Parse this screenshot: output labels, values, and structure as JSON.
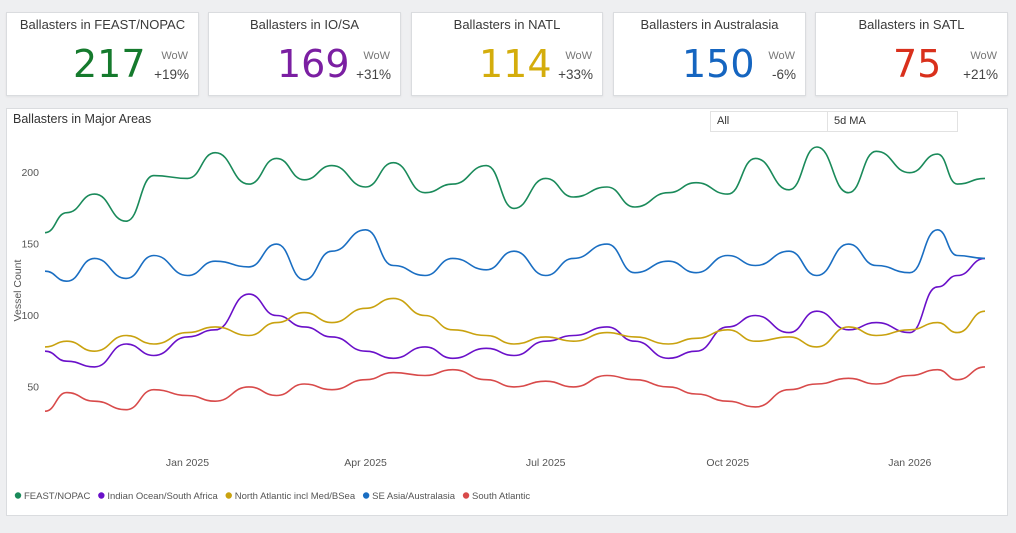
{
  "cards": [
    {
      "title": "Ballasters in FEAST/NOPAC",
      "value": "217",
      "wow_label": "WoW",
      "wow": "+19%",
      "color": "#157a2d"
    },
    {
      "title": "Ballasters in IO/SA",
      "value": "169",
      "wow_label": "WoW",
      "wow": "+31%",
      "color": "#7b1fa2"
    },
    {
      "title": "Ballasters in NATL",
      "value": "114",
      "wow_label": "WoW",
      "wow": "+33%",
      "color": "#d4ad0c"
    },
    {
      "title": "Ballasters in Australasia",
      "value": "150",
      "wow_label": "WoW",
      "wow": "-6%",
      "color": "#1565c0"
    },
    {
      "title": "Ballasters in SATL",
      "value": "75",
      "wow_label": "WoW",
      "wow": "+21%",
      "color": "#d9301c"
    }
  ],
  "panel": {
    "title": "Ballasters in Major Areas",
    "slicer_all": "All",
    "slicer_ma": "5d MA"
  },
  "chart_data": {
    "type": "line",
    "title": "Ballasters in Major Areas",
    "xlabel": "",
    "ylabel": "Vessel Count",
    "ylim": [
      10,
      225
    ],
    "yticks": [
      50,
      100,
      150,
      200
    ],
    "x_range": [
      "2024-10-21",
      "2026-02-08"
    ],
    "xticks": [
      {
        "date": "2025-01-01",
        "label": "Jan 2025"
      },
      {
        "date": "2025-04-01",
        "label": "Apr 2025"
      },
      {
        "date": "2025-07-01",
        "label": "Jul 2025"
      },
      {
        "date": "2025-10-01",
        "label": "Oct 2025"
      },
      {
        "date": "2026-01-01",
        "label": "Jan 2026"
      }
    ],
    "series": [
      {
        "name": "FEAST/NOPAC",
        "color": "#1a8a5a",
        "points": [
          [
            "2024-10-21",
            158
          ],
          [
            "2024-11-01",
            172
          ],
          [
            "2024-11-15",
            185
          ],
          [
            "2024-12-01",
            166
          ],
          [
            "2024-12-15",
            198
          ],
          [
            "2025-01-01",
            196
          ],
          [
            "2025-01-15",
            214
          ],
          [
            "2025-02-01",
            192
          ],
          [
            "2025-02-15",
            210
          ],
          [
            "2025-03-01",
            195
          ],
          [
            "2025-03-15",
            205
          ],
          [
            "2025-04-01",
            190
          ],
          [
            "2025-04-15",
            207
          ],
          [
            "2025-05-01",
            186
          ],
          [
            "2025-05-15",
            192
          ],
          [
            "2025-06-01",
            205
          ],
          [
            "2025-06-15",
            175
          ],
          [
            "2025-07-01",
            196
          ],
          [
            "2025-07-15",
            183
          ],
          [
            "2025-08-01",
            190
          ],
          [
            "2025-08-15",
            176
          ],
          [
            "2025-09-01",
            186
          ],
          [
            "2025-09-15",
            193
          ],
          [
            "2025-10-01",
            185
          ],
          [
            "2025-10-15",
            210
          ],
          [
            "2025-11-01",
            188
          ],
          [
            "2025-11-15",
            218
          ],
          [
            "2025-12-01",
            186
          ],
          [
            "2025-12-15",
            215
          ],
          [
            "2026-01-01",
            200
          ],
          [
            "2026-01-15",
            213
          ],
          [
            "2026-01-25",
            192
          ],
          [
            "2026-02-08",
            196
          ]
        ]
      },
      {
        "name": "Indian Ocean/South Africa",
        "color": "#6a10c9",
        "points": [
          [
            "2024-10-21",
            75
          ],
          [
            "2024-11-01",
            68
          ],
          [
            "2024-11-15",
            64
          ],
          [
            "2024-12-01",
            80
          ],
          [
            "2024-12-15",
            72
          ],
          [
            "2025-01-01",
            85
          ],
          [
            "2025-01-15",
            90
          ],
          [
            "2025-02-01",
            115
          ],
          [
            "2025-02-15",
            100
          ],
          [
            "2025-03-01",
            92
          ],
          [
            "2025-03-15",
            85
          ],
          [
            "2025-04-01",
            75
          ],
          [
            "2025-04-15",
            70
          ],
          [
            "2025-05-01",
            78
          ],
          [
            "2025-05-15",
            70
          ],
          [
            "2025-06-01",
            77
          ],
          [
            "2025-06-15",
            72
          ],
          [
            "2025-07-01",
            82
          ],
          [
            "2025-07-15",
            86
          ],
          [
            "2025-08-01",
            92
          ],
          [
            "2025-08-15",
            82
          ],
          [
            "2025-09-01",
            70
          ],
          [
            "2025-09-15",
            75
          ],
          [
            "2025-10-01",
            92
          ],
          [
            "2025-10-15",
            100
          ],
          [
            "2025-11-01",
            88
          ],
          [
            "2025-11-15",
            103
          ],
          [
            "2025-12-01",
            90
          ],
          [
            "2025-12-15",
            95
          ],
          [
            "2026-01-01",
            88
          ],
          [
            "2026-01-15",
            120
          ],
          [
            "2026-01-25",
            128
          ],
          [
            "2026-02-08",
            140
          ]
        ]
      },
      {
        "name": "North Atlantic incl Med/BSea",
        "color": "#c9a20f",
        "points": [
          [
            "2024-10-21",
            78
          ],
          [
            "2024-11-01",
            82
          ],
          [
            "2024-11-15",
            75
          ],
          [
            "2024-12-01",
            86
          ],
          [
            "2024-12-15",
            80
          ],
          [
            "2025-01-01",
            88
          ],
          [
            "2025-01-15",
            92
          ],
          [
            "2025-02-01",
            86
          ],
          [
            "2025-02-15",
            95
          ],
          [
            "2025-03-01",
            102
          ],
          [
            "2025-03-15",
            95
          ],
          [
            "2025-04-01",
            105
          ],
          [
            "2025-04-15",
            112
          ],
          [
            "2025-05-01",
            100
          ],
          [
            "2025-05-15",
            90
          ],
          [
            "2025-06-01",
            86
          ],
          [
            "2025-06-15",
            80
          ],
          [
            "2025-07-01",
            85
          ],
          [
            "2025-07-15",
            82
          ],
          [
            "2025-08-01",
            88
          ],
          [
            "2025-08-15",
            85
          ],
          [
            "2025-09-01",
            80
          ],
          [
            "2025-09-15",
            84
          ],
          [
            "2025-10-01",
            90
          ],
          [
            "2025-10-15",
            82
          ],
          [
            "2025-11-01",
            85
          ],
          [
            "2025-11-15",
            78
          ],
          [
            "2025-12-01",
            92
          ],
          [
            "2025-12-15",
            86
          ],
          [
            "2026-01-01",
            90
          ],
          [
            "2026-01-15",
            95
          ],
          [
            "2026-01-25",
            88
          ],
          [
            "2026-02-08",
            103
          ]
        ]
      },
      {
        "name": "SE Asia/Australasia",
        "color": "#1a6ec2",
        "points": [
          [
            "2024-10-21",
            131
          ],
          [
            "2024-11-01",
            124
          ],
          [
            "2024-11-15",
            140
          ],
          [
            "2024-12-01",
            126
          ],
          [
            "2024-12-15",
            142
          ],
          [
            "2025-01-01",
            128
          ],
          [
            "2025-01-15",
            138
          ],
          [
            "2025-02-01",
            134
          ],
          [
            "2025-02-15",
            150
          ],
          [
            "2025-03-01",
            125
          ],
          [
            "2025-03-15",
            145
          ],
          [
            "2025-04-01",
            160
          ],
          [
            "2025-04-15",
            135
          ],
          [
            "2025-05-01",
            128
          ],
          [
            "2025-05-15",
            140
          ],
          [
            "2025-06-01",
            132
          ],
          [
            "2025-06-15",
            145
          ],
          [
            "2025-07-01",
            128
          ],
          [
            "2025-07-15",
            140
          ],
          [
            "2025-08-01",
            150
          ],
          [
            "2025-08-15",
            130
          ],
          [
            "2025-09-01",
            138
          ],
          [
            "2025-09-15",
            130
          ],
          [
            "2025-10-01",
            142
          ],
          [
            "2025-10-15",
            135
          ],
          [
            "2025-11-01",
            145
          ],
          [
            "2025-11-15",
            128
          ],
          [
            "2025-12-01",
            150
          ],
          [
            "2025-12-15",
            135
          ],
          [
            "2026-01-01",
            130
          ],
          [
            "2026-01-15",
            160
          ],
          [
            "2026-01-25",
            142
          ],
          [
            "2026-02-08",
            140
          ]
        ]
      },
      {
        "name": "South Atlantic",
        "color": "#d84a4a",
        "points": [
          [
            "2024-10-21",
            33
          ],
          [
            "2024-11-01",
            46
          ],
          [
            "2024-11-15",
            40
          ],
          [
            "2024-12-01",
            34
          ],
          [
            "2024-12-15",
            48
          ],
          [
            "2025-01-01",
            44
          ],
          [
            "2025-01-15",
            40
          ],
          [
            "2025-02-01",
            50
          ],
          [
            "2025-02-15",
            44
          ],
          [
            "2025-03-01",
            52
          ],
          [
            "2025-03-15",
            48
          ],
          [
            "2025-04-01",
            55
          ],
          [
            "2025-04-15",
            60
          ],
          [
            "2025-05-01",
            58
          ],
          [
            "2025-05-15",
            62
          ],
          [
            "2025-06-01",
            55
          ],
          [
            "2025-06-15",
            50
          ],
          [
            "2025-07-01",
            54
          ],
          [
            "2025-07-15",
            50
          ],
          [
            "2025-08-01",
            58
          ],
          [
            "2025-08-15",
            55
          ],
          [
            "2025-09-01",
            50
          ],
          [
            "2025-09-15",
            45
          ],
          [
            "2025-10-01",
            40
          ],
          [
            "2025-10-15",
            36
          ],
          [
            "2025-11-01",
            48
          ],
          [
            "2025-11-15",
            52
          ],
          [
            "2025-12-01",
            56
          ],
          [
            "2025-12-15",
            52
          ],
          [
            "2026-01-01",
            58
          ],
          [
            "2026-01-15",
            62
          ],
          [
            "2026-01-25",
            55
          ],
          [
            "2026-02-08",
            64
          ]
        ]
      }
    ]
  }
}
